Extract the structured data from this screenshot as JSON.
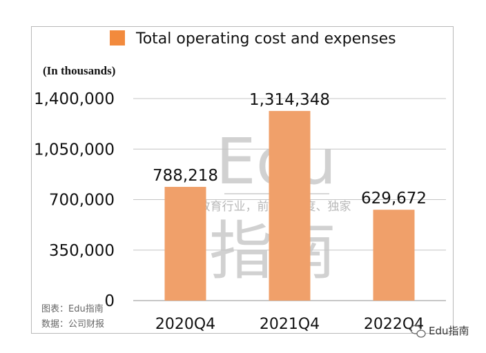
{
  "chart_data": {
    "type": "bar",
    "categories": [
      "2020Q4",
      "2021Q4",
      "2022Q4"
    ],
    "series": [
      {
        "name": "Total operating cost and expenses",
        "values": [
          788218,
          1314348,
          629672
        ]
      }
    ],
    "data_labels": [
      "788,218",
      "1,314,348",
      "629,672"
    ],
    "ylabel": "(In thousands)",
    "yticks": [
      "0",
      "350,000",
      "700,000",
      "1,050,000",
      "1,400,000"
    ],
    "ytick_values": [
      0,
      350000,
      700000,
      1050000,
      1400000
    ],
    "ylim": [
      0,
      1400000
    ],
    "grid": true,
    "legend_position": "top",
    "bar_color": "#F0A06A",
    "legend_color": "#F28A3D"
  },
  "watermark": {
    "main": "Edu",
    "slogan": "教育行业，前沿、深度、独家",
    "chinese": "指南"
  },
  "footer": {
    "chart_source": "图表：Edu指南",
    "data_source": "数据：公司财报",
    "brand": "Edu指南"
  }
}
